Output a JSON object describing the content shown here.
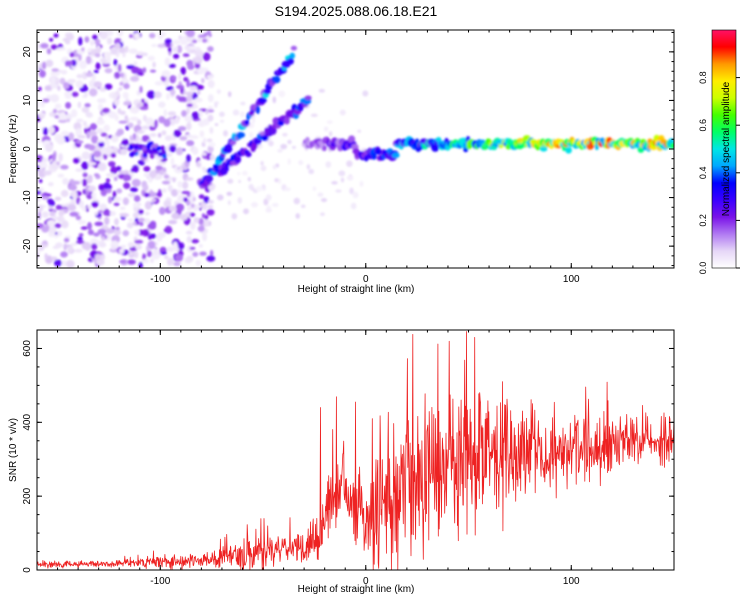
{
  "title": "S194.2025.088.06.18.E21",
  "colors": {
    "snr_line": "#ee2222",
    "colormap": [
      "#ffffff",
      "#e6d7f7",
      "#b079f2",
      "#7a12e8",
      "#3a00ff",
      "#0000ff",
      "#00a8ff",
      "#00e6e6",
      "#00ff66",
      "#44ff00",
      "#ccff00",
      "#ffee00",
      "#ff9900",
      "#ff0000",
      "#ff1166"
    ]
  },
  "chart_data": [
    {
      "type": "heatmap",
      "name": "spectrogram",
      "xlabel": "Height of straight line (km)",
      "ylabel": "Frequency (Hz)",
      "xlim": [
        -160,
        150
      ],
      "ylim": [
        -24.5,
        24.5
      ],
      "xticks": [
        -100,
        0,
        100
      ],
      "yticks": [
        -20,
        -10,
        0,
        10,
        20
      ],
      "colorbar": {
        "label": "Normalized spectral amplitude",
        "range": [
          0,
          1
        ],
        "ticks": [
          "0.0",
          "0.2",
          "0.4",
          "0.6",
          "0.8"
        ]
      },
      "features": [
        {
          "name": "ridge at 0-2 Hz",
          "x_range": [
            -30,
            150
          ],
          "freq_hz": 1,
          "amplitude": 0.9
        },
        {
          "name": "rising track 1",
          "x_from": -80,
          "x_to": -35,
          "freq_from": -8,
          "freq_to": 20,
          "amplitude": 0.45
        },
        {
          "name": "rising track 2",
          "x_from": -72,
          "x_to": -28,
          "freq_from": -5,
          "freq_to": 10,
          "amplitude": 0.4
        },
        {
          "name": "cluster",
          "x_range": [
            -115,
            -98
          ],
          "freq_hz": 0,
          "amplitude": 0.35
        },
        {
          "name": "broadband noise",
          "x_range": [
            -160,
            -80
          ],
          "freq_range": [
            -24,
            24
          ],
          "amplitude": 0.15
        }
      ]
    },
    {
      "type": "line",
      "name": "snr",
      "xlabel": "Height of straight line (km)",
      "ylabel": "SNR (10 * v/v)",
      "xlim": [
        -160,
        150
      ],
      "ylim": [
        0,
        650
      ],
      "xticks": [
        -100,
        0,
        100
      ],
      "yticks": [
        0,
        200,
        400,
        600
      ],
      "profile": {
        "x": [
          -160,
          -120,
          -100,
          -80,
          -60,
          -40,
          -25,
          -22,
          -18,
          -10,
          -5,
          0,
          5,
          10,
          18,
          25,
          30,
          40,
          50,
          60,
          70,
          80,
          90,
          100,
          120,
          150
        ],
        "baseline": [
          15,
          18,
          22,
          25,
          40,
          55,
          70,
          100,
          190,
          230,
          180,
          120,
          160,
          200,
          210,
          230,
          250,
          270,
          290,
          300,
          310,
          320,
          320,
          330,
          340,
          350
        ],
        "spread": [
          8,
          10,
          18,
          15,
          40,
          35,
          60,
          90,
          100,
          90,
          90,
          90,
          150,
          170,
          200,
          200,
          190,
          190,
          180,
          160,
          120,
          100,
          90,
          80,
          70,
          60
        ]
      },
      "peaks": [
        {
          "x": 23,
          "y": 638
        },
        {
          "x": 35,
          "y": 612
        },
        {
          "x": 49,
          "y": 646
        },
        {
          "x": 53,
          "y": 630
        },
        {
          "x": -5,
          "y": 455
        },
        {
          "x": -22,
          "y": 440
        }
      ]
    }
  ]
}
